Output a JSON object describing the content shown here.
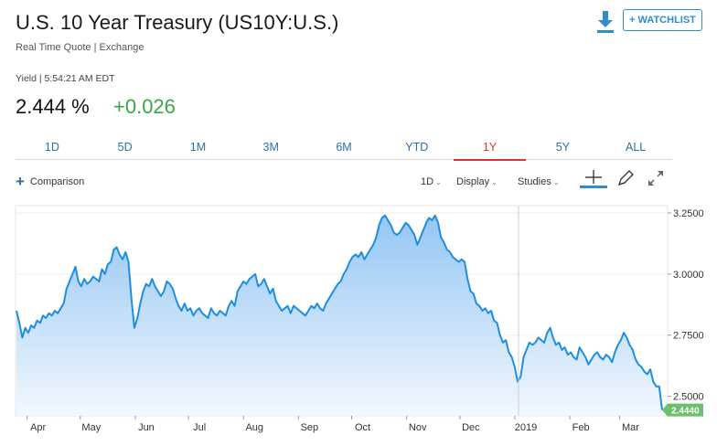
{
  "header": {
    "title": "U.S. 10 Year Treasury (US10Y:U.S.)",
    "subtitle": "Real Time Quote | Exchange",
    "watchlist_label": "+ WATCHLIST"
  },
  "quote": {
    "yield_meta": "Yield | 5:54:21 AM EDT",
    "price": "2.444 %",
    "change": "+0.026"
  },
  "range_tabs": [
    "1D",
    "5D",
    "1M",
    "3M",
    "6M",
    "YTD",
    "1Y",
    "5Y",
    "ALL"
  ],
  "active_tab": "1Y",
  "toolbar": {
    "comparison": "Comparison",
    "interval": "1D",
    "display": "Display",
    "studies": "Studies"
  },
  "colors": {
    "line": "#1e8fe0",
    "fill_top": "#94c6f4",
    "fill_bottom": "#f2f8fe",
    "positive": "#3aa54a",
    "active_tab": "#dd3333",
    "link": "#2f6fa8"
  },
  "chart_data": {
    "type": "area",
    "x_tick_labels": [
      "Apr",
      "May",
      "Jun",
      "Jul",
      "Aug",
      "Sep",
      "Oct",
      "Nov",
      "Dec",
      "2019",
      "Feb",
      "Mar"
    ],
    "y_tick_labels": [
      "3.2500",
      "3.0000",
      "2.7500",
      "2.5000"
    ],
    "ylim": [
      2.42,
      3.28
    ],
    "last_value_label": "2.4440",
    "x_start": "2018-03-26",
    "x_end": "2019-03-25",
    "series": [
      {
        "values": [
          2.85,
          2.8,
          2.74,
          2.78,
          2.76,
          2.79,
          2.78,
          2.81,
          2.8,
          2.83,
          2.82,
          2.84,
          2.83,
          2.85,
          2.84,
          2.86,
          2.88,
          2.94,
          2.97,
          3.0,
          3.03,
          2.97,
          2.95,
          2.98,
          2.96,
          2.97,
          2.99,
          2.98,
          2.97,
          3.02,
          3.0,
          3.04,
          3.05,
          3.1,
          3.11,
          3.08,
          3.06,
          3.09,
          3.05,
          2.9,
          2.78,
          2.82,
          2.88,
          2.93,
          2.96,
          2.95,
          2.98,
          2.95,
          2.93,
          2.91,
          2.93,
          2.97,
          2.96,
          2.94,
          2.9,
          2.87,
          2.85,
          2.88,
          2.85,
          2.86,
          2.83,
          2.85,
          2.86,
          2.84,
          2.83,
          2.82,
          2.86,
          2.84,
          2.83,
          2.85,
          2.84,
          2.83,
          2.87,
          2.89,
          2.87,
          2.93,
          2.95,
          2.97,
          2.96,
          2.98,
          2.99,
          3.0,
          2.95,
          2.96,
          2.98,
          2.95,
          2.92,
          2.94,
          2.89,
          2.87,
          2.85,
          2.86,
          2.87,
          2.84,
          2.87,
          2.86,
          2.85,
          2.84,
          2.83,
          2.85,
          2.87,
          2.86,
          2.88,
          2.86,
          2.85,
          2.88,
          2.9,
          2.92,
          2.94,
          2.96,
          2.97,
          3.0,
          3.02,
          3.05,
          3.07,
          3.08,
          3.07,
          3.09,
          3.06,
          3.08,
          3.1,
          3.12,
          3.15,
          3.2,
          3.23,
          3.24,
          3.22,
          3.2,
          3.17,
          3.16,
          3.17,
          3.19,
          3.21,
          3.2,
          3.18,
          3.16,
          3.12,
          3.15,
          3.18,
          3.21,
          3.23,
          3.22,
          3.24,
          3.21,
          3.15,
          3.13,
          3.1,
          3.09,
          3.07,
          3.06,
          3.05,
          3.06,
          3.05,
          2.98,
          2.93,
          2.92,
          2.88,
          2.87,
          2.85,
          2.86,
          2.84,
          2.85,
          2.81,
          2.8,
          2.75,
          2.72,
          2.73,
          2.68,
          2.66,
          2.62,
          2.56,
          2.58,
          2.66,
          2.69,
          2.72,
          2.71,
          2.72,
          2.74,
          2.73,
          2.72,
          2.76,
          2.78,
          2.74,
          2.71,
          2.72,
          2.69,
          2.7,
          2.67,
          2.68,
          2.66,
          2.65,
          2.7,
          2.68,
          2.66,
          2.63,
          2.65,
          2.67,
          2.68,
          2.66,
          2.65,
          2.67,
          2.66,
          2.64,
          2.68,
          2.71,
          2.73,
          2.76,
          2.74,
          2.71,
          2.69,
          2.65,
          2.63,
          2.62,
          2.6,
          2.59,
          2.61,
          2.56,
          2.54,
          2.54,
          2.444
        ]
      }
    ]
  }
}
